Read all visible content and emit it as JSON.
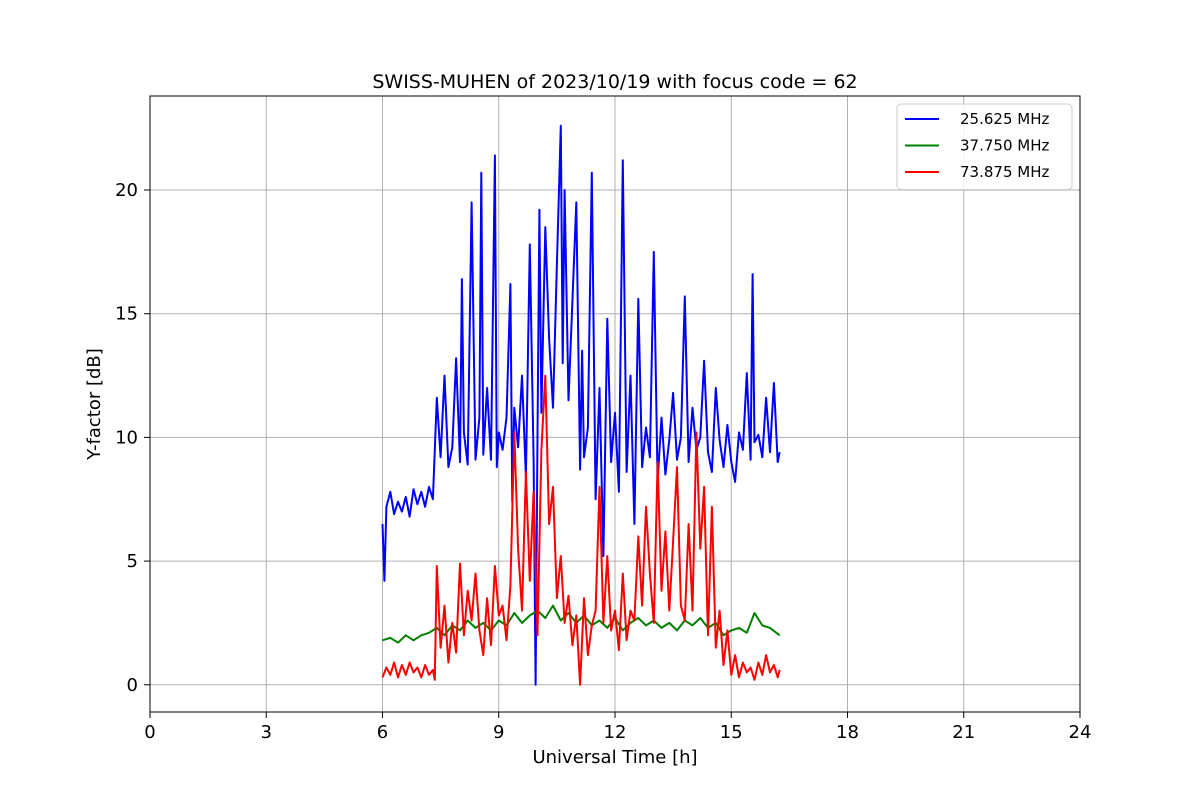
{
  "chart_data": {
    "type": "line",
    "title": "SWISS-MUHEN of 2023/10/19 with focus code = 62",
    "xlabel": "Universal Time [h]",
    "ylabel": "Y-factor [dB]",
    "xlim": [
      0,
      24
    ],
    "ylim": [
      -1.1,
      23.8
    ],
    "xticks": [
      0,
      3,
      6,
      9,
      12,
      15,
      18,
      21,
      24
    ],
    "yticks": [
      0,
      5,
      10,
      15,
      20
    ],
    "grid": true,
    "legend_position": "top-right",
    "series": [
      {
        "name": "25.625 MHz",
        "color": "#0000ff",
        "x": [
          6.0,
          6.05,
          6.1,
          6.2,
          6.3,
          6.4,
          6.5,
          6.6,
          6.7,
          6.8,
          6.9,
          7.0,
          7.1,
          7.2,
          7.3,
          7.35,
          7.4,
          7.5,
          7.6,
          7.7,
          7.8,
          7.9,
          8.0,
          8.05,
          8.1,
          8.2,
          8.3,
          8.4,
          8.5,
          8.55,
          8.6,
          8.7,
          8.8,
          8.9,
          8.95,
          9.0,
          9.1,
          9.2,
          9.3,
          9.35,
          9.4,
          9.5,
          9.6,
          9.7,
          9.8,
          9.9,
          9.95,
          10.0,
          10.05,
          10.1,
          10.2,
          10.3,
          10.4,
          10.5,
          10.6,
          10.65,
          10.7,
          10.8,
          10.9,
          11.0,
          11.1,
          11.15,
          11.2,
          11.3,
          11.4,
          11.5,
          11.6,
          11.7,
          11.8,
          11.9,
          12.0,
          12.1,
          12.2,
          12.3,
          12.4,
          12.5,
          12.6,
          12.7,
          12.8,
          12.9,
          13.0,
          13.1,
          13.2,
          13.3,
          13.4,
          13.5,
          13.6,
          13.7,
          13.8,
          13.9,
          14.0,
          14.1,
          14.2,
          14.3,
          14.4,
          14.5,
          14.6,
          14.7,
          14.8,
          14.9,
          15.0,
          15.1,
          15.2,
          15.3,
          15.4,
          15.5,
          15.55,
          15.6,
          15.7,
          15.8,
          15.9,
          16.0,
          16.1,
          16.2,
          16.25
        ],
        "y": [
          6.5,
          4.2,
          7.2,
          7.8,
          6.9,
          7.4,
          7.0,
          7.6,
          6.8,
          7.9,
          7.3,
          7.8,
          7.2,
          8.0,
          7.5,
          9.5,
          11.6,
          9.2,
          12.5,
          8.8,
          9.6,
          13.2,
          9.0,
          16.4,
          10.2,
          8.9,
          19.5,
          9.1,
          10.8,
          20.7,
          9.3,
          12.0,
          9.1,
          21.4,
          8.8,
          10.2,
          9.5,
          10.8,
          16.2,
          7.4,
          11.2,
          9.6,
          12.5,
          8.4,
          17.8,
          9.1,
          0.0,
          10.1,
          19.2,
          11.0,
          18.5,
          14.0,
          11.2,
          17.0,
          22.6,
          13.0,
          20.0,
          11.5,
          15.5,
          19.5,
          8.7,
          13.5,
          9.2,
          10.4,
          20.7,
          7.5,
          12.0,
          5.2,
          14.8,
          9.0,
          11.0,
          7.8,
          21.2,
          8.6,
          12.5,
          6.5,
          15.6,
          8.8,
          10.4,
          9.2,
          17.5,
          8.2,
          10.8,
          8.5,
          9.9,
          11.8,
          9.1,
          10.0,
          15.7,
          9.0,
          11.2,
          9.5,
          10.0,
          13.1,
          9.4,
          8.6,
          12.0,
          9.9,
          8.8,
          10.5,
          9.0,
          8.2,
          10.2,
          9.5,
          12.6,
          9.1,
          16.6,
          9.8,
          10.1,
          9.2,
          11.6,
          9.4,
          12.2,
          9.0,
          9.4
        ]
      },
      {
        "name": "37.750 MHz",
        "color": "#008000",
        "x": [
          6.0,
          6.2,
          6.4,
          6.6,
          6.8,
          7.0,
          7.2,
          7.4,
          7.6,
          7.8,
          8.0,
          8.2,
          8.4,
          8.6,
          8.8,
          9.0,
          9.2,
          9.4,
          9.6,
          9.8,
          10.0,
          10.2,
          10.4,
          10.6,
          10.8,
          11.0,
          11.2,
          11.4,
          11.6,
          11.8,
          12.0,
          12.2,
          12.4,
          12.6,
          12.8,
          13.0,
          13.2,
          13.4,
          13.6,
          13.8,
          14.0,
          14.2,
          14.4,
          14.6,
          14.8,
          15.0,
          15.2,
          15.4,
          15.6,
          15.8,
          16.0,
          16.25
        ],
        "y": [
          1.8,
          1.9,
          1.7,
          2.0,
          1.8,
          2.0,
          2.1,
          2.3,
          2.0,
          2.4,
          2.2,
          2.6,
          2.3,
          2.5,
          2.2,
          2.6,
          2.4,
          2.9,
          2.5,
          2.8,
          3.0,
          2.7,
          3.2,
          2.6,
          2.9,
          2.5,
          2.8,
          2.4,
          2.6,
          2.3,
          2.7,
          2.2,
          2.5,
          2.7,
          2.4,
          2.6,
          2.3,
          2.5,
          2.2,
          2.6,
          2.4,
          2.7,
          2.3,
          2.5,
          2.0,
          2.2,
          2.3,
          2.1,
          2.9,
          2.4,
          2.3,
          2.0
        ]
      },
      {
        "name": "73.875 MHz",
        "color": "#ff0000",
        "x": [
          6.0,
          6.1,
          6.2,
          6.3,
          6.4,
          6.5,
          6.6,
          6.7,
          6.8,
          6.9,
          7.0,
          7.1,
          7.2,
          7.3,
          7.35,
          7.4,
          7.5,
          7.6,
          7.7,
          7.8,
          7.9,
          8.0,
          8.1,
          8.2,
          8.3,
          8.4,
          8.5,
          8.6,
          8.7,
          8.8,
          8.9,
          9.0,
          9.1,
          9.2,
          9.3,
          9.4,
          9.5,
          9.6,
          9.7,
          9.8,
          9.9,
          10.0,
          10.1,
          10.2,
          10.3,
          10.4,
          10.5,
          10.6,
          10.7,
          10.8,
          10.9,
          11.0,
          11.1,
          11.2,
          11.3,
          11.4,
          11.5,
          11.6,
          11.7,
          11.8,
          11.9,
          12.0,
          12.1,
          12.2,
          12.3,
          12.4,
          12.5,
          12.6,
          12.7,
          12.8,
          12.9,
          13.0,
          13.1,
          13.2,
          13.3,
          13.4,
          13.5,
          13.6,
          13.7,
          13.8,
          13.9,
          14.0,
          14.1,
          14.2,
          14.3,
          14.4,
          14.5,
          14.6,
          14.7,
          14.8,
          14.9,
          15.0,
          15.1,
          15.2,
          15.3,
          15.4,
          15.5,
          15.6,
          15.7,
          15.8,
          15.9,
          16.0,
          16.1,
          16.2,
          16.25
        ],
        "y": [
          0.3,
          0.7,
          0.4,
          0.9,
          0.3,
          0.8,
          0.4,
          0.9,
          0.5,
          0.7,
          0.3,
          0.8,
          0.4,
          0.6,
          0.2,
          4.8,
          1.5,
          3.2,
          0.9,
          2.5,
          1.3,
          4.9,
          2.0,
          3.8,
          2.6,
          4.5,
          2.2,
          1.2,
          3.5,
          1.6,
          4.8,
          2.8,
          3.2,
          1.8,
          4.0,
          10.2,
          5.5,
          3.0,
          8.6,
          4.2,
          7.8,
          2.0,
          9.5,
          12.5,
          6.5,
          8.0,
          3.5,
          5.2,
          2.5,
          3.6,
          1.6,
          2.8,
          0.0,
          3.5,
          1.2,
          2.4,
          3.0,
          8.0,
          2.5,
          5.2,
          2.2,
          3.0,
          1.4,
          4.5,
          1.8,
          3.0,
          2.6,
          6.0,
          3.2,
          7.2,
          4.5,
          2.5,
          9.0,
          3.8,
          6.2,
          3.0,
          5.8,
          8.8,
          3.2,
          2.6,
          6.5,
          3.0,
          10.2,
          5.5,
          8.0,
          2.0,
          7.2,
          1.5,
          3.0,
          0.8,
          2.2,
          0.4,
          1.2,
          0.3,
          0.9,
          0.5,
          0.7,
          0.2,
          0.9,
          0.4,
          1.2,
          0.5,
          0.8,
          0.3,
          0.6
        ]
      }
    ]
  }
}
